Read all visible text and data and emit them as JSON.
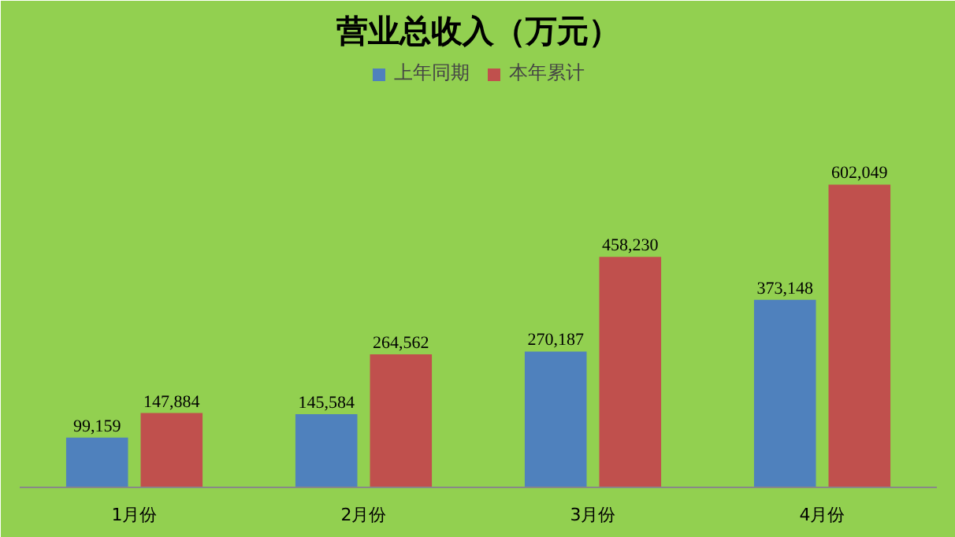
{
  "chart_data": {
    "type": "bar",
    "title": "营业总收入（万元）",
    "categories": [
      "1月份",
      "2月份",
      "3月份",
      "4月份"
    ],
    "series": [
      {
        "name": "上年同期",
        "color": "#4f81bd",
        "values": [
          99159,
          145584,
          270187,
          373148
        ],
        "value_labels": [
          "99,159",
          "145,584",
          "270,187",
          "373,148"
        ]
      },
      {
        "name": "本年累计",
        "color": "#c0504d",
        "values": [
          147884,
          264562,
          458230,
          602049
        ],
        "value_labels": [
          "147,884",
          "264,562",
          "458,230",
          "602,049"
        ]
      }
    ],
    "legend": "top"
  }
}
